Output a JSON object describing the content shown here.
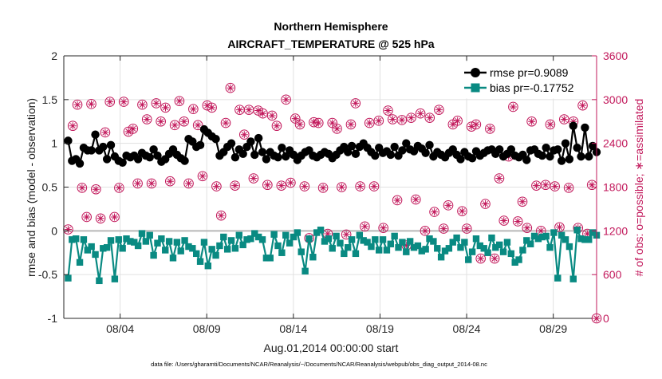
{
  "chart_data": {
    "type": "line",
    "title": "Northern Hemisphere",
    "subtitle": "AIRCRAFT_TEMPERATURE @ 525 hPa",
    "xlabel": "Aug.01,2014 00:00:00 start",
    "ylabel_left": "rmse and bias (model - observation)",
    "ylabel_right": "# of obs: o=possible; ∗=assimilated",
    "footnote": "data file: /Users/gharamti/Documents/NCAR/Reanalysis/~/Documents/NCAR/Reanalysis/webpub/obs_diag_output_2014-08.nc",
    "xlim": [
      0.75,
      31.5
    ],
    "ylim_left": [
      -1,
      2
    ],
    "ylim_right": [
      0,
      3600
    ],
    "x_ticks": [
      4,
      9,
      14,
      19,
      24,
      29
    ],
    "x_tick_labels": [
      "08/04",
      "08/09",
      "08/14",
      "08/19",
      "08/24",
      "08/29"
    ],
    "y_ticks_left": [
      -1,
      -0.5,
      0,
      0.5,
      1,
      1.5,
      2
    ],
    "y_tick_labels_left": [
      "-1",
      "-0.5",
      "0",
      "0.5",
      "1",
      "1.5",
      "2"
    ],
    "y_ticks_right": [
      0,
      600,
      1200,
      1800,
      2400,
      3000,
      3600
    ],
    "y_tick_labels_right": [
      "0",
      "600",
      "1200",
      "1800",
      "2400",
      "3000",
      "3600"
    ],
    "grid": true,
    "legend_position": "top-right",
    "series": [
      {
        "name": "rmse",
        "legend_label": "rmse pr=0.9089",
        "color": "#000000",
        "axis": "left",
        "marker": "circle",
        "values": [
          1.03,
          0.8,
          0.82,
          0.77,
          0.95,
          0.92,
          0.92,
          1.1,
          0.92,
          0.96,
          0.82,
          0.98,
          0.85,
          0.8,
          0.78,
          0.86,
          0.84,
          0.86,
          0.82,
          0.89,
          0.86,
          0.84,
          0.93,
          0.86,
          0.79,
          0.82,
          0.88,
          0.93,
          0.87,
          0.83,
          0.8,
          1.05,
          1.02,
          0.96,
          0.98,
          1.16,
          1.12,
          1.08,
          1.05,
          0.86,
          0.9,
          0.96,
          1.0,
          0.84,
          0.93,
          0.88,
          0.96,
          1.02,
          0.87,
          1.06,
          0.9,
          0.82,
          0.9,
          0.86,
          0.84,
          0.95,
          0.85,
          0.92,
          0.87,
          0.81,
          0.86,
          0.9,
          0.92,
          0.86,
          0.84,
          0.87,
          0.9,
          0.88,
          0.83,
          0.87,
          0.92,
          0.96,
          0.9,
          0.97,
          0.88,
          0.96,
          1.0,
          0.95,
          0.9,
          0.86,
          0.95,
          0.89,
          0.91,
          0.87,
          0.96,
          0.86,
          0.92,
          1.0,
          0.93,
          0.91,
          0.97,
          0.94,
          0.89,
          0.98,
          0.85,
          0.9,
          0.87,
          0.84,
          0.89,
          0.93,
          0.87,
          0.82,
          0.9,
          0.85,
          0.83,
          0.91,
          0.86,
          0.89,
          0.92,
          0.93,
          0.88,
          0.93,
          0.85,
          0.88,
          0.93,
          0.86,
          0.84,
          0.87,
          0.81,
          0.92,
          0.93,
          0.88,
          0.86,
          0.95,
          0.85,
          0.92,
          0.93,
          0.8,
          1.0,
          0.82,
          1.2,
          0.95,
          0.85,
          1.18,
          0.85,
          0.97,
          0.9
        ]
      },
      {
        "name": "bias",
        "legend_label": "bias pr=-0.17752",
        "color": "#098a82",
        "axis": "left",
        "marker": "square",
        "values": [
          -0.54,
          -0.1,
          -0.09,
          -0.36,
          -0.1,
          -0.22,
          -0.18,
          -0.27,
          -0.57,
          -0.2,
          -0.19,
          -0.11,
          -0.55,
          -0.1,
          -0.2,
          -0.09,
          -0.12,
          -0.13,
          -0.17,
          -0.03,
          -0.12,
          -0.05,
          -0.28,
          -0.14,
          -0.09,
          -0.22,
          -0.12,
          -0.31,
          -0.13,
          -0.23,
          -0.11,
          -0.18,
          -0.2,
          -0.26,
          -0.35,
          -0.13,
          -0.4,
          -0.21,
          -0.28,
          -0.17,
          -0.07,
          -0.21,
          -0.11,
          -0.2,
          -0.05,
          -0.16,
          -0.1,
          -0.09,
          -0.03,
          -0.07,
          -0.1,
          -0.31,
          -0.31,
          -0.04,
          -0.17,
          -0.25,
          -0.05,
          -0.14,
          -0.07,
          -0.02,
          -0.24,
          -0.46,
          -0.09,
          -0.3,
          -0.02,
          0.01,
          -0.12,
          -0.09,
          -0.2,
          -0.06,
          -0.14,
          -0.26,
          -0.19,
          -0.1,
          -0.26,
          -0.05,
          -0.11,
          -0.13,
          -0.18,
          -0.1,
          -0.22,
          -0.1,
          -0.22,
          -0.15,
          -0.06,
          -0.19,
          -0.13,
          -0.24,
          -0.12,
          -0.19,
          -0.17,
          -0.23,
          -0.21,
          -0.09,
          -0.12,
          -0.2,
          -0.3,
          -0.23,
          -0.2,
          -0.13,
          -0.08,
          -0.19,
          -0.13,
          -0.33,
          -0.24,
          -0.09,
          -0.17,
          -0.2,
          -0.25,
          -0.08,
          -0.19,
          -0.16,
          -0.24,
          -0.13,
          -0.26,
          -0.36,
          -0.33,
          -0.22,
          -0.11,
          -0.15,
          -0.06,
          -0.09,
          -0.07,
          -0.06,
          -0.19,
          -0.02,
          -0.54,
          -0.05,
          -0.1,
          -0.18,
          -0.55,
          0.01,
          -0.09,
          -0.1,
          -0.1,
          -0.02,
          -0.05
        ]
      },
      {
        "name": "obs possible",
        "color": "#c2185b",
        "axis": "right",
        "marker": "circle-open",
        "values": [
          1220,
          2640,
          2930,
          1790,
          1390,
          2940,
          1770,
          1370,
          2550,
          2970,
          1390,
          1790,
          2970,
          2560,
          2600,
          1850,
          2930,
          2730,
          1850,
          2950,
          2700,
          2890,
          1880,
          2650,
          2980,
          2700,
          1850,
          2870,
          2650,
          1950,
          2920,
          2890,
          1810,
          1410,
          2680,
          3160,
          1820,
          2860,
          2520,
          2860,
          1920,
          2850,
          2810,
          1830,
          2780,
          2640,
          1820,
          3000,
          1860,
          2740,
          2660,
          1810,
          1100,
          2690,
          2680,
          1790,
          1160,
          2680,
          2600,
          1800,
          1150,
          2660,
          2950,
          1810,
          1260,
          2680,
          1810,
          2710,
          1240,
          2850,
          2730,
          1620,
          2720,
          1000,
          2750,
          1630,
          2810,
          1200,
          2750,
          1460,
          2860,
          1230,
          1550,
          2660,
          2710,
          1470,
          1230,
          2630,
          2660,
          820,
          1570,
          2600,
          820,
          1920,
          1340,
          2220,
          2900,
          1330,
          1600,
          1240,
          2700,
          1820,
          1200,
          1830,
          2660,
          1810,
          1250,
          2730,
          1790,
          2700,
          1240,
          2920,
          1160,
          1830,
          0
        ]
      },
      {
        "name": "obs assimilated",
        "color": "#c2185b",
        "axis": "right",
        "marker": "asterisk",
        "values": [
          1220,
          2640,
          2930,
          1790,
          1390,
          2940,
          1770,
          1370,
          2550,
          2970,
          1390,
          1790,
          2970,
          2560,
          2600,
          1850,
          2930,
          2730,
          1850,
          2950,
          2700,
          2890,
          1880,
          2650,
          2980,
          2700,
          1850,
          2870,
          2650,
          1950,
          2920,
          2890,
          1810,
          1410,
          2680,
          3160,
          1820,
          2860,
          2520,
          2860,
          1920,
          2850,
          2810,
          1830,
          2780,
          2640,
          1820,
          3000,
          1860,
          2740,
          2660,
          1810,
          1100,
          2690,
          2680,
          1790,
          1160,
          2680,
          2600,
          1800,
          1150,
          2660,
          2950,
          1810,
          1260,
          2680,
          1810,
          2710,
          1240,
          2850,
          2730,
          1620,
          2720,
          1000,
          2750,
          1630,
          2810,
          1200,
          2750,
          1460,
          2860,
          1230,
          1550,
          2660,
          2710,
          1470,
          1230,
          2630,
          2660,
          820,
          1570,
          2600,
          820,
          1920,
          1340,
          2220,
          2900,
          1330,
          1600,
          1240,
          2700,
          1820,
          1200,
          1830,
          2660,
          1810,
          1250,
          2730,
          1790,
          2700,
          1240,
          2920,
          1160,
          1830,
          0
        ]
      }
    ]
  }
}
